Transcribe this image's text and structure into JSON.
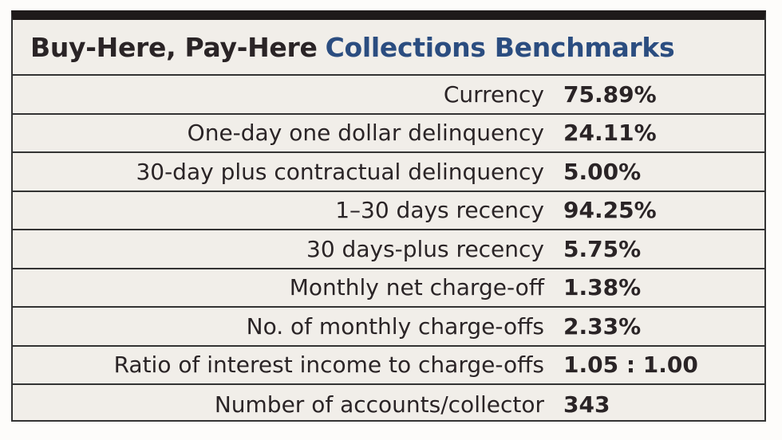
{
  "title": {
    "part1": "Buy-Here, Pay-Here",
    "part2": "Collections Benchmarks"
  },
  "colors": {
    "title_dark": "#2a2426",
    "title_blue": "#2b4d80",
    "background": "#f1eee9"
  },
  "rows": [
    {
      "label": "Currency",
      "value": "75.89%"
    },
    {
      "label": "One-day one dollar delinquency",
      "value": "24.11%"
    },
    {
      "label": "30-day plus contractual delinquency",
      "value": "5.00%"
    },
    {
      "label": "1–30 days recency",
      "value": "94.25%"
    },
    {
      "label": "30 days-plus recency",
      "value": "5.75%"
    },
    {
      "label": "Monthly net charge-off",
      "value": "1.38%"
    },
    {
      "label": "No. of monthly charge-offs",
      "value": "2.33%"
    },
    {
      "label": "Ratio of interest income to charge-offs",
      "value": "1.05 : 1.00"
    },
    {
      "label": "Number of accounts/collector",
      "value": "343"
    }
  ]
}
